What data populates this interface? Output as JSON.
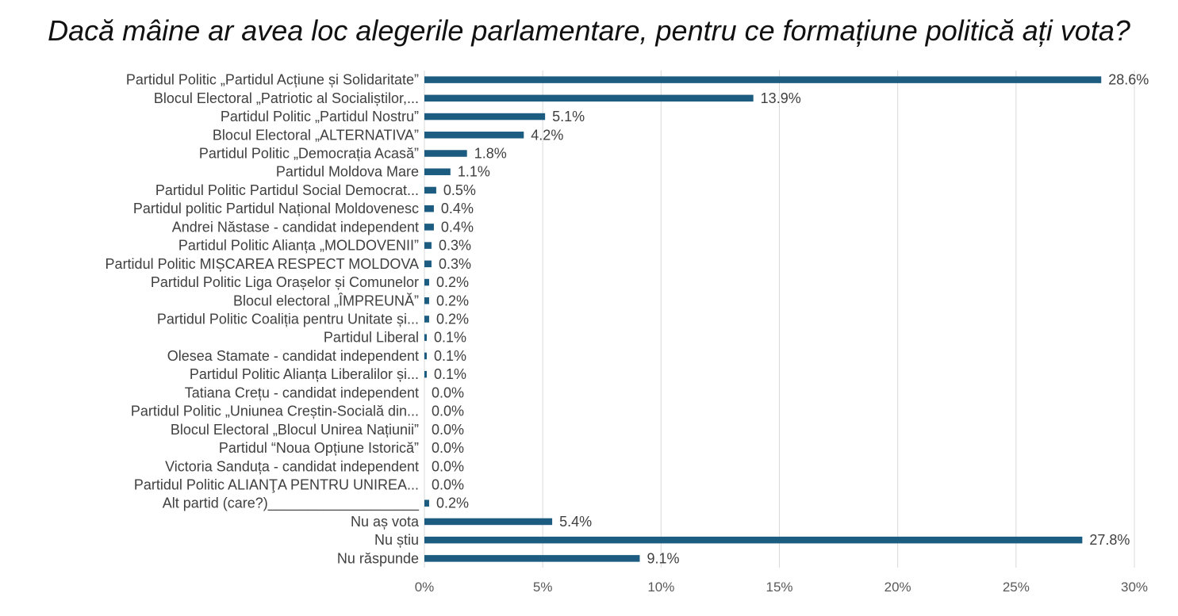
{
  "chart_data": {
    "type": "bar",
    "orientation": "horizontal",
    "title": "Dacă mâine ar avea loc alegerile parlamentare, pentru ce formațiune politică ați vota?",
    "xlim": [
      0,
      30
    ],
    "x_ticks": [
      "0%",
      "5%",
      "10%",
      "15%",
      "20%",
      "25%",
      "30%"
    ],
    "x_tick_values": [
      0,
      5,
      10,
      15,
      20,
      25,
      30
    ],
    "grid": true,
    "legend": "none",
    "bar_color": "#1c5c80",
    "categories": [
      "Partidul Politic „Partidul Acțiune și Solidaritate”",
      "Blocul Electoral „Patriotic al Socialiștilor,...",
      "Partidul Politic „Partidul Nostru”",
      "Blocul Electoral „ALTERNATIVA”",
      "Partidul Politic „Democrația Acasă”",
      "Partidul Moldova Mare",
      "Partidul Politic Partidul Social Democrat...",
      "Partidul politic Partidul Național Moldovenesc",
      "Andrei Năstase - candidat independent",
      "Partidul Politic Alianța „MOLDOVENII”",
      "Partidul Politic MIȘCAREA RESPECT MOLDOVA",
      "Partidul Politic Liga Orașelor și Comunelor",
      "Blocul electoral „ÎMPREUNĂ”",
      "Partidul Politic Coaliția pentru Unitate și...",
      "Partidul Liberal",
      "Olesea Stamate - candidat independent",
      "Partidul Politic Alianța Liberalilor și...",
      "Tatiana Crețu - candidat independent",
      "Partidul Politic „Uniunea Creștin-Socială din...",
      "Blocul Electoral „Blocul Unirea Națiunii”",
      "Partidul “Noua Opțiune Istorică”",
      "Victoria Sanduța - candidat independent",
      "Partidul Politic ALIANŢA PENTRU UNIREA...",
      "Alt partid (care?)___________________",
      "Nu aș vota",
      "Nu știu",
      "Nu răspunde"
    ],
    "values": [
      28.6,
      13.9,
      5.1,
      4.2,
      1.8,
      1.1,
      0.5,
      0.4,
      0.4,
      0.3,
      0.3,
      0.2,
      0.2,
      0.2,
      0.1,
      0.1,
      0.1,
      0.0,
      0.0,
      0.0,
      0.0,
      0.0,
      0.0,
      0.2,
      5.4,
      27.8,
      9.1
    ],
    "value_labels": [
      "28.6%",
      "13.9%",
      "5.1%",
      "4.2%",
      "1.8%",
      "1.1%",
      "0.5%",
      "0.4%",
      "0.4%",
      "0.3%",
      "0.3%",
      "0.2%",
      "0.2%",
      "0.2%",
      "0.1%",
      "0.1%",
      "0.1%",
      "0.0%",
      "0.0%",
      "0.0%",
      "0.0%",
      "0.0%",
      "0.0%",
      "0.2%",
      "5.4%",
      "27.8%",
      "9.1%"
    ]
  }
}
